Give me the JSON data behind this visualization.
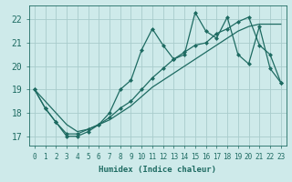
{
  "xlabel": "Humidex (Indice chaleur)",
  "bg_color": "#ceeaea",
  "grid_color": "#a8cccc",
  "line_color": "#1e6b62",
  "xlim": [
    -0.5,
    23.5
  ],
  "ylim": [
    16.6,
    22.6
  ],
  "xticks": [
    0,
    1,
    2,
    3,
    4,
    5,
    6,
    7,
    8,
    9,
    10,
    11,
    12,
    13,
    14,
    15,
    16,
    17,
    18,
    19,
    20,
    21,
    22,
    23
  ],
  "yticks": [
    17,
    18,
    19,
    20,
    21,
    22
  ],
  "line1_x": [
    0,
    1,
    2,
    3,
    4,
    5,
    6,
    7,
    8,
    9,
    10,
    11,
    12,
    13,
    14,
    15,
    16,
    17,
    18,
    19,
    20,
    21,
    22,
    23
  ],
  "line1_y": [
    19.0,
    18.2,
    17.6,
    17.0,
    17.0,
    17.2,
    17.5,
    18.0,
    19.0,
    19.4,
    20.7,
    21.6,
    20.9,
    20.3,
    20.5,
    22.3,
    21.5,
    21.2,
    22.1,
    20.5,
    20.1,
    21.7,
    19.9,
    19.3
  ],
  "line2_x": [
    0,
    1,
    2,
    3,
    4,
    5,
    6,
    7,
    8,
    9,
    10,
    11,
    12,
    13,
    14,
    15,
    16,
    17,
    18,
    19,
    20,
    21,
    22,
    23
  ],
  "line2_y": [
    19.0,
    18.5,
    18.0,
    17.5,
    17.2,
    17.3,
    17.5,
    17.7,
    18.0,
    18.3,
    18.7,
    19.1,
    19.4,
    19.7,
    20.0,
    20.3,
    20.6,
    20.9,
    21.2,
    21.5,
    21.7,
    21.8,
    21.8,
    21.8
  ],
  "line3_x": [
    0,
    1,
    2,
    3,
    4,
    5,
    6,
    7,
    8,
    9,
    10,
    11,
    12,
    13,
    14,
    15,
    16,
    17,
    18,
    19,
    20,
    21,
    22,
    23
  ],
  "line3_y": [
    19.0,
    18.2,
    17.6,
    17.1,
    17.1,
    17.3,
    17.5,
    17.8,
    18.2,
    18.5,
    19.0,
    19.5,
    19.9,
    20.3,
    20.6,
    20.9,
    21.0,
    21.4,
    21.6,
    21.9,
    22.1,
    20.9,
    20.5,
    19.3
  ],
  "markersize": 2.5,
  "linewidth": 0.9,
  "label_fontsize": 6.5,
  "tick_fontsize": 5.5
}
